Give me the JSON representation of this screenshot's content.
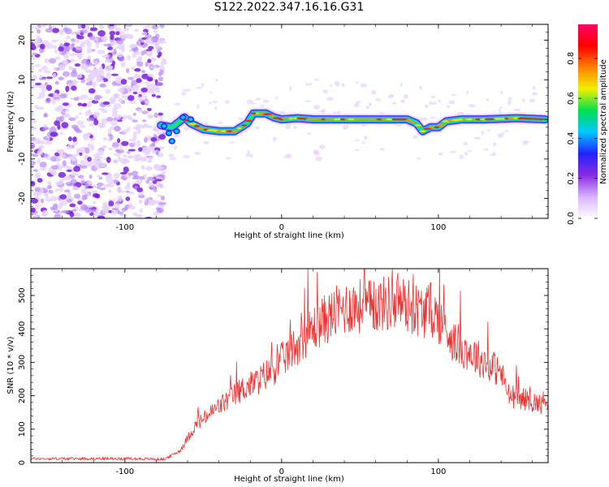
{
  "title": "S122.2022.347.16.16.G31",
  "chart_data": [
    {
      "type": "heatmap",
      "xlabel": "Height of straight line (km)",
      "ylabel": "Frequency (Hz)",
      "xlim": [
        -160,
        170
      ],
      "ylim": [
        -25,
        24
      ],
      "x_ticks": [
        -100,
        0,
        100
      ],
      "y_ticks": [
        20,
        10,
        0,
        -10,
        -20
      ],
      "noise_region_x": [
        -160,
        -75
      ],
      "ridge": {
        "x": [
          -77,
          -70,
          -65,
          -62,
          -58,
          -50,
          -40,
          -30,
          -22,
          -18,
          -10,
          -5,
          0,
          10,
          20,
          40,
          60,
          80,
          86,
          90,
          95,
          100,
          105,
          115,
          130,
          150,
          168
        ],
        "freq": [
          -1.5,
          -2,
          -0.5,
          0.5,
          -1,
          -2.5,
          -3,
          -3,
          -1,
          1.5,
          1.5,
          0.5,
          0,
          0.3,
          0,
          0,
          0,
          0,
          -1,
          -3,
          -2,
          -2,
          -0.5,
          0,
          0,
          0.3,
          0
        ]
      },
      "colorbar": {
        "label": "Normalized spectral amplitude",
        "range": [
          0.0,
          0.97
        ],
        "ticks": [
          "0.0",
          "0.2",
          "0.4",
          "0.6",
          "0.8"
        ],
        "colors": [
          "#ffffff",
          "#d9b3ff",
          "#8a2be2",
          "#2222ff",
          "#00c8ff",
          "#00e050",
          "#f0f000",
          "#ff8000",
          "#ff0000",
          "#ff0066"
        ]
      }
    },
    {
      "type": "line",
      "xlabel": "Height of straight line (km)",
      "ylabel": "SNR (10 * v/v)",
      "xlim": [
        -160,
        170
      ],
      "ylim": [
        0,
        580
      ],
      "x_ticks": [
        -100,
        0,
        100
      ],
      "y_ticks": [
        0,
        100,
        200,
        300,
        400,
        500
      ],
      "line_color": "#ee3333",
      "envelope": {
        "x": [
          -160,
          -100,
          -75,
          -65,
          -55,
          -45,
          -35,
          -25,
          -15,
          -5,
          5,
          15,
          25,
          35,
          45,
          55,
          65,
          75,
          85,
          90,
          95,
          100,
          105,
          110,
          120,
          130,
          140,
          145,
          155,
          165,
          170
        ],
        "y": [
          12,
          12,
          10,
          35,
          110,
          150,
          185,
          220,
          245,
          280,
          330,
          380,
          420,
          450,
          470,
          465,
          475,
          480,
          460,
          450,
          460,
          430,
          400,
          360,
          330,
          300,
          270,
          200,
          190,
          175,
          195
        ]
      }
    }
  ]
}
